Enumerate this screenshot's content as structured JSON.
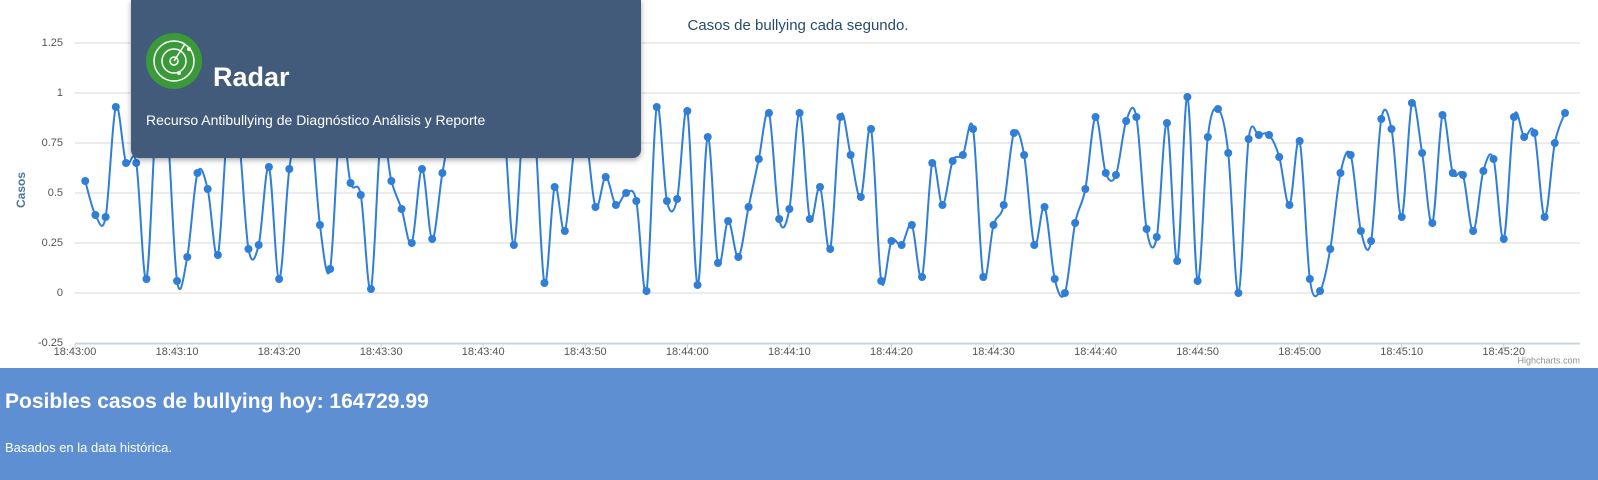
{
  "header": {
    "title": "Radar",
    "subtitle": "Recurso Antibullying de Diagnóstico Análisis y Reporte"
  },
  "chart_data": {
    "type": "line",
    "title": "Casos de bullying cada segundo.",
    "y_label": "Casos",
    "credits": "Highcharts.com",
    "grid": true,
    "xlim": [
      "18:43:00",
      "18:45:26"
    ],
    "xticks": [
      "18:43:00",
      "18:43:10",
      "18:43:20",
      "18:43:30",
      "18:43:40",
      "18:43:50",
      "18:44:00",
      "18:44:10",
      "18:44:20",
      "18:44:30",
      "18:44:40",
      "18:44:50",
      "18:45:00",
      "18:45:10",
      "18:45:20"
    ],
    "ylim": [
      -0.25,
      1.25
    ],
    "yticks": [
      -0.25,
      0,
      0.25,
      0.5,
      0.75,
      1,
      1.25
    ],
    "x": [
      "18:43:01",
      "18:43:02",
      "18:43:03",
      "18:43:04",
      "18:43:05",
      "18:43:06",
      "18:43:07",
      "18:43:08",
      "18:43:09",
      "18:43:10",
      "18:43:11",
      "18:43:12",
      "18:43:13",
      "18:43:14",
      "18:43:15",
      "18:43:16",
      "18:43:17",
      "18:43:18",
      "18:43:19",
      "18:43:20",
      "18:43:21",
      "18:43:22",
      "18:43:23",
      "18:43:24",
      "18:43:25",
      "18:43:26",
      "18:43:27",
      "18:43:28",
      "18:43:29",
      "18:43:30",
      "18:43:31",
      "18:43:32",
      "18:43:33",
      "18:43:34",
      "18:43:35",
      "18:43:36",
      "18:43:37",
      "18:43:38",
      "18:43:39",
      "18:43:40",
      "18:43:41",
      "18:43:42",
      "18:43:43",
      "18:43:44",
      "18:43:45",
      "18:43:46",
      "18:43:47",
      "18:43:48",
      "18:43:49",
      "18:43:50",
      "18:43:51",
      "18:43:52",
      "18:43:53",
      "18:43:54",
      "18:43:55",
      "18:43:56",
      "18:43:57",
      "18:43:58",
      "18:43:59",
      "18:44:00",
      "18:44:01",
      "18:44:02",
      "18:44:03",
      "18:44:04",
      "18:44:05",
      "18:44:06",
      "18:44:07",
      "18:44:08",
      "18:44:09",
      "18:44:10",
      "18:44:11",
      "18:44:12",
      "18:44:13",
      "18:44:14",
      "18:44:15",
      "18:44:16",
      "18:44:17",
      "18:44:18",
      "18:44:19",
      "18:44:20",
      "18:44:21",
      "18:44:22",
      "18:44:23",
      "18:44:24",
      "18:44:25",
      "18:44:26",
      "18:44:27",
      "18:44:28",
      "18:44:29",
      "18:44:30",
      "18:44:31",
      "18:44:32",
      "18:44:33",
      "18:44:34",
      "18:44:35",
      "18:44:36",
      "18:44:37",
      "18:44:38",
      "18:44:39",
      "18:44:40",
      "18:44:41",
      "18:44:42",
      "18:44:43",
      "18:44:44",
      "18:44:45",
      "18:44:46",
      "18:44:47",
      "18:44:48",
      "18:44:49",
      "18:44:50",
      "18:44:51",
      "18:44:52",
      "18:44:53",
      "18:44:54",
      "18:44:55",
      "18:44:56",
      "18:44:57",
      "18:44:58",
      "18:44:59",
      "18:45:00",
      "18:45:01",
      "18:45:02",
      "18:45:03",
      "18:45:04",
      "18:45:05",
      "18:45:06",
      "18:45:07",
      "18:45:08",
      "18:45:09",
      "18:45:10",
      "18:45:11",
      "18:45:12",
      "18:45:13",
      "18:45:14",
      "18:45:15",
      "18:45:16",
      "18:45:17",
      "18:45:18",
      "18:45:19",
      "18:45:20",
      "18:45:21",
      "18:45:22",
      "18:45:23",
      "18:45:24",
      "18:45:25",
      "18:45:26"
    ],
    "series": [
      {
        "name": "Casos",
        "color": "#2f7ed8",
        "values": [
          0.56,
          0.39,
          0.38,
          0.93,
          0.65,
          0.65,
          0.07,
          0.9,
          0.85,
          0.06,
          0.18,
          0.6,
          0.52,
          0.19,
          0.85,
          0.8,
          0.22,
          0.24,
          0.63,
          0.07,
          0.62,
          0.85,
          0.9,
          0.34,
          0.12,
          0.85,
          0.55,
          0.49,
          0.02,
          0.8,
          0.56,
          0.42,
          0.25,
          0.62,
          0.27,
          0.6,
          0.85,
          0.9,
          0.8,
          0.85,
          0.9,
          0.85,
          0.24,
          0.9,
          0.85,
          0.05,
          0.53,
          0.31,
          0.75,
          0.8,
          0.43,
          0.58,
          0.44,
          0.5,
          0.46,
          0.01,
          0.93,
          0.46,
          0.47,
          0.91,
          0.04,
          0.78,
          0.15,
          0.36,
          0.18,
          0.43,
          0.67,
          0.9,
          0.37,
          0.42,
          0.9,
          0.37,
          0.53,
          0.22,
          0.88,
          0.69,
          0.48,
          0.82,
          0.06,
          0.26,
          0.24,
          0.34,
          0.08,
          0.65,
          0.44,
          0.66,
          0.69,
          0.82,
          0.08,
          0.34,
          0.44,
          0.8,
          0.69,
          0.24,
          0.43,
          0.07,
          0.0,
          0.35,
          0.52,
          0.88,
          0.6,
          0.59,
          0.86,
          0.88,
          0.32,
          0.28,
          0.85,
          0.16,
          0.98,
          0.06,
          0.78,
          0.92,
          0.7,
          0.0,
          0.77,
          0.79,
          0.79,
          0.68,
          0.44,
          0.76,
          0.07,
          0.01,
          0.22,
          0.6,
          0.69,
          0.31,
          0.26,
          0.87,
          0.82,
          0.38,
          0.95,
          0.7,
          0.35,
          0.89,
          0.6,
          0.59,
          0.31,
          0.61,
          0.67,
          0.27,
          0.88,
          0.78,
          0.8,
          0.38,
          0.75,
          0.9
        ]
      }
    ]
  },
  "summary": {
    "title": "Posibles casos de bullying hoy: 164729.99",
    "note": "Basados en la data histórica."
  }
}
